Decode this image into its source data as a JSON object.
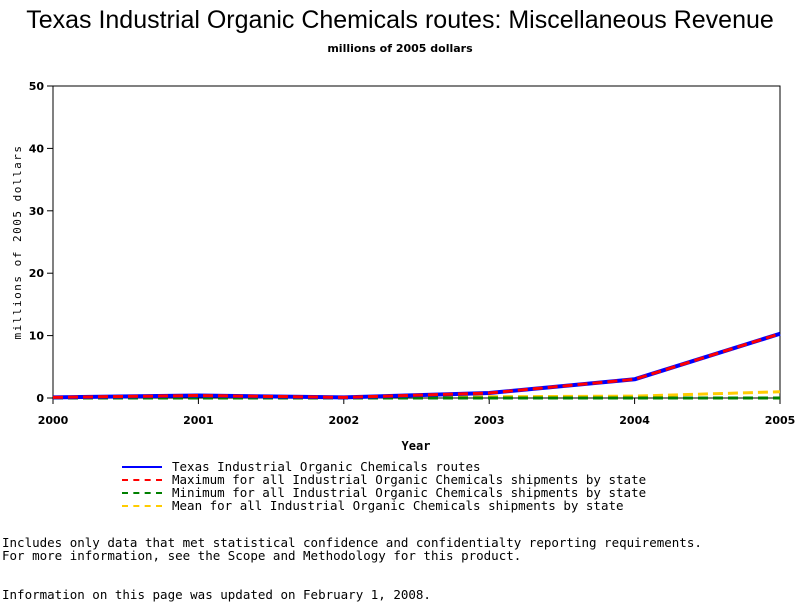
{
  "chart_data": {
    "type": "line",
    "title": "Texas Industrial Organic Chemicals routes: Miscellaneous Revenue",
    "subtitle": "millions of 2005 dollars",
    "xlabel": "Year",
    "ylabel": "millions of 2005 dollars",
    "x": [
      2000,
      2001,
      2002,
      2003,
      2004,
      2005
    ],
    "xlim": [
      2000,
      2005
    ],
    "ylim": [
      0,
      50
    ],
    "yticks": [
      0,
      10,
      20,
      30,
      40,
      50
    ],
    "xticks": [
      2000,
      2001,
      2002,
      2003,
      2004,
      2005
    ],
    "grid": false,
    "legend_position": "bottom",
    "series": [
      {
        "name": "Texas Industrial Organic Chemicals routes",
        "values": [
          0.1,
          0.4,
          0.1,
          0.8,
          3.0,
          10.3
        ],
        "color": "#0000ff",
        "style": "solid"
      },
      {
        "name": "Maximum for all Industrial Organic Chemicals shipments by state",
        "values": [
          0.1,
          0.4,
          0.1,
          0.8,
          3.0,
          10.3
        ],
        "color": "#ff0000",
        "style": "dash"
      },
      {
        "name": "Minimum for all Industrial Organic Chemicals shipments by state",
        "values": [
          0.0,
          0.0,
          0.0,
          0.0,
          0.0,
          0.0
        ],
        "color": "#008000",
        "style": "dash"
      },
      {
        "name": "Mean for all Industrial Organic Chemicals shipments by state",
        "values": [
          0.0,
          0.1,
          0.0,
          0.2,
          0.3,
          1.0
        ],
        "color": "#ffcc00",
        "style": "dash"
      }
    ]
  },
  "notes": {
    "line1": "Includes only data that met statistical confidence and confidentialty reporting requirements.",
    "line2": "For more information, see the Scope and Methodology for this product."
  },
  "updated": "Information on this page was updated on February 1, 2008."
}
